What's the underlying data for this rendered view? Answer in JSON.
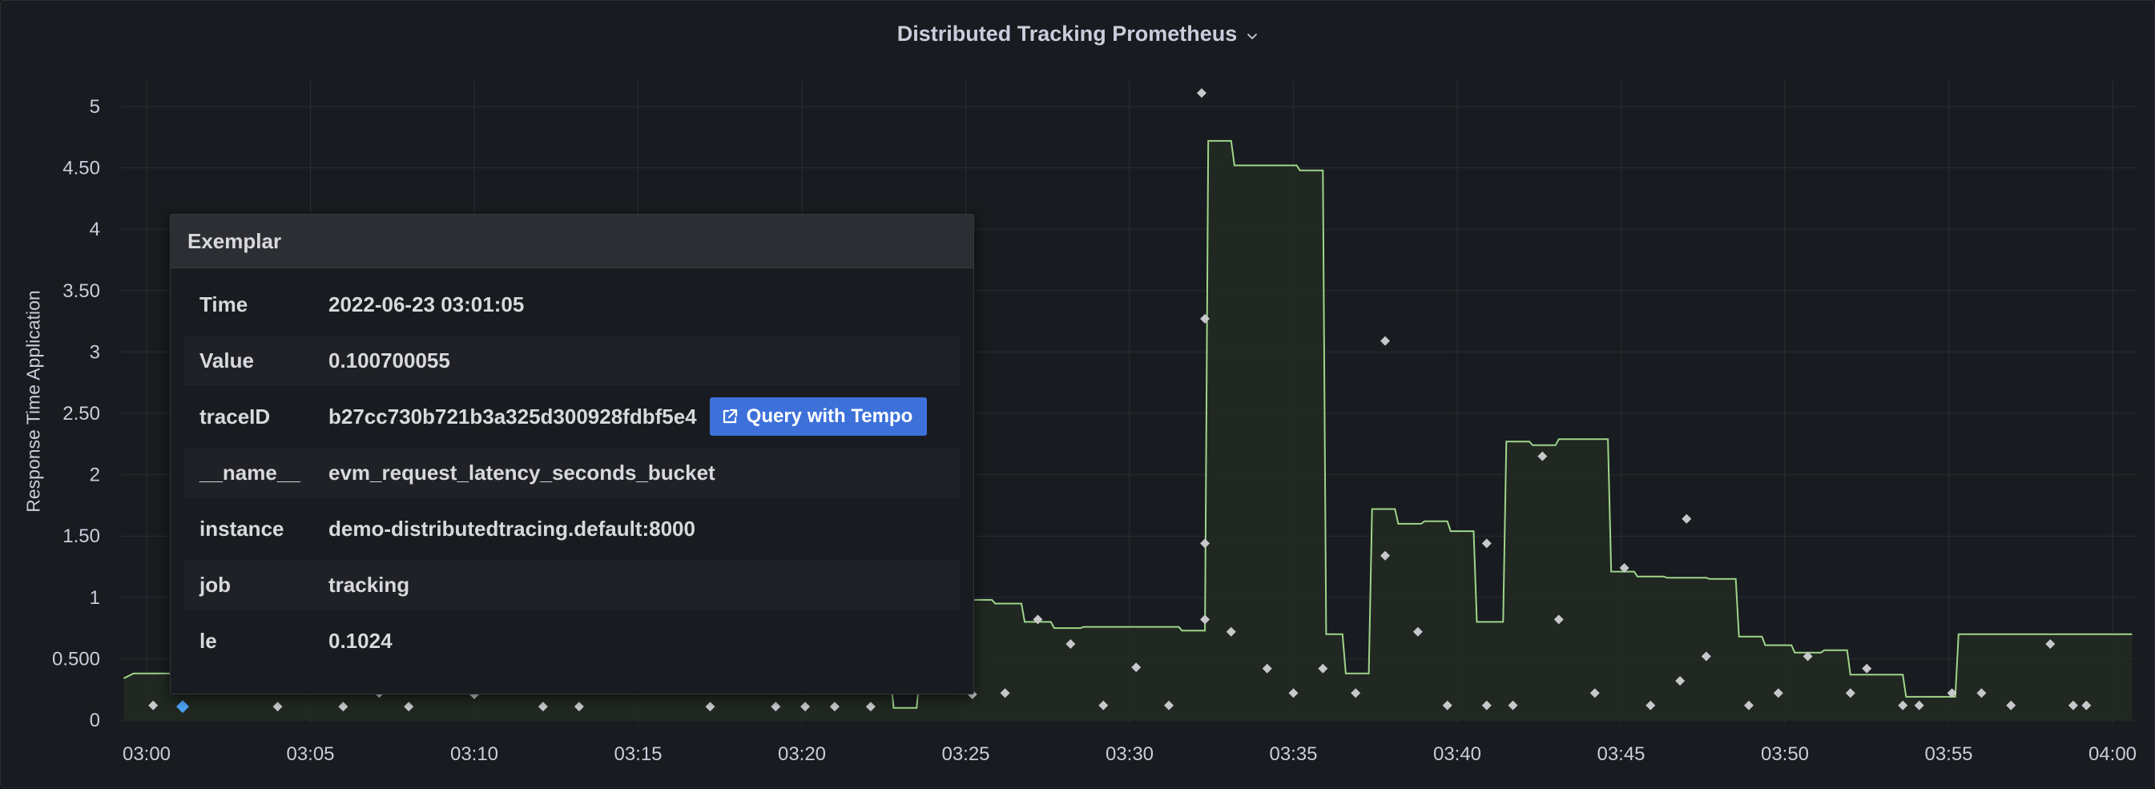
{
  "panel": {
    "title": "Distributed Tracking Prometheus"
  },
  "tooltip": {
    "header": "Exemplar",
    "rows": [
      {
        "key": "Time",
        "value": "2022-06-23 03:01:05"
      },
      {
        "key": "Value",
        "value": "0.100700055"
      },
      {
        "key": "traceID",
        "value": "b27cc730b721b3a325d300928fdbf5e4"
      },
      {
        "key": "__name__",
        "value": "evm_request_latency_seconds_bucket"
      },
      {
        "key": "instance",
        "value": "demo-distributedtracing.default:8000"
      },
      {
        "key": "job",
        "value": "tracking"
      },
      {
        "key": "le",
        "value": "0.1024"
      }
    ],
    "query_button_label": "Query with Tempo"
  },
  "colors": {
    "line": "#9ed58a",
    "fill": "#222a22",
    "exemplar": "#c8c8cc",
    "selected_exemplar": "#4da3f5",
    "accent_button": "#3d71d9"
  },
  "icons": {
    "title_menu": "chevron-down-icon",
    "button": "external-link-icon"
  },
  "chart_data": {
    "type": "area",
    "ylabel": "Response Time Application",
    "xlabel": "",
    "ylim": [
      0,
      5
    ],
    "y_ticks": [
      "0",
      "0.500",
      "1",
      "1.50",
      "2",
      "2.50",
      "3",
      "3.50",
      "4",
      "4.50",
      "5"
    ],
    "x_ticks": [
      "03:00",
      "03:05",
      "03:10",
      "03:15",
      "03:20",
      "03:25",
      "03:30",
      "03:35",
      "03:40",
      "03:45",
      "03:50",
      "03:55",
      "04:00"
    ],
    "grid": true,
    "series": [
      {
        "x": [
          -0.7,
          -0.4,
          0.5,
          9.2,
          22.7,
          22.8,
          23.5,
          23.6,
          24.1,
          24.2,
          25.0,
          25.1,
          25.8,
          25.9,
          26.7,
          26.8,
          27.6,
          27.7,
          28.5,
          28.6,
          29.4,
          29.5,
          31.5,
          31.6,
          32.3,
          32.4,
          33.1,
          33.2,
          34.2,
          35.1,
          35.2,
          35.9,
          36.0,
          36.5,
          36.6,
          37.3,
          37.4,
          38.1,
          38.2,
          38.9,
          39.0,
          39.7,
          39.8,
          40.5,
          40.6,
          41.4,
          41.5,
          42.2,
          42.3,
          43.0,
          43.1,
          43.8,
          43.9,
          44.6,
          44.7,
          45.4,
          45.5,
          46.3,
          46.4,
          47.6,
          47.7,
          48.5,
          48.6,
          49.3,
          49.4,
          50.2,
          50.3,
          51.1,
          51.2,
          51.9,
          52.0,
          52.7,
          52.8,
          53.6,
          53.7,
          54.4,
          54.5,
          55.2,
          55.3,
          56.1,
          56.2,
          57.3,
          57.4,
          58.1,
          58.2,
          59.0,
          59.1,
          60.1,
          60.2,
          60.6
        ],
        "y": [
          0.34,
          0.38,
          0.38,
          0.38,
          0.38,
          0.1,
          0.1,
          0.38,
          0.38,
          1.02,
          1.02,
          0.98,
          0.98,
          0.95,
          0.95,
          0.8,
          0.8,
          0.75,
          0.75,
          0.76,
          0.76,
          0.76,
          0.76,
          0.73,
          0.73,
          4.72,
          4.72,
          4.52,
          4.52,
          4.52,
          4.48,
          4.48,
          0.7,
          0.7,
          0.38,
          0.38,
          1.72,
          1.72,
          1.6,
          1.6,
          1.62,
          1.62,
          1.54,
          1.54,
          0.8,
          0.8,
          2.27,
          2.27,
          2.24,
          2.24,
          2.29,
          2.29,
          2.29,
          2.29,
          1.21,
          1.21,
          1.17,
          1.17,
          1.16,
          1.16,
          1.15,
          1.15,
          0.68,
          0.68,
          0.61,
          0.61,
          0.55,
          0.55,
          0.57,
          0.57,
          0.37,
          0.37,
          0.37,
          0.37,
          0.19,
          0.19,
          0.19,
          0.19,
          0.7,
          0.7,
          0.7,
          0.7,
          0.7,
          0.7,
          0.7,
          0.7,
          0.7,
          0.7,
          0.7,
          0.7
        ]
      }
    ],
    "exemplars": {
      "x": [
        0.2,
        1.1,
        4.0,
        6.0,
        7.1,
        8.0,
        10.0,
        12.1,
        13.2,
        17.2,
        19.2,
        20.1,
        21.0,
        22.1,
        25.2,
        26.2,
        27.2,
        28.2,
        29.2,
        30.2,
        31.2,
        32.2,
        32.3,
        32.3,
        32.3,
        33.1,
        34.2,
        35.0,
        35.9,
        36.9,
        37.8,
        37.8,
        38.8,
        39.7,
        40.9,
        40.9,
        41.7,
        42.6,
        43.1,
        44.2,
        45.1,
        45.9,
        46.8,
        47.0,
        47.6,
        48.9,
        49.8,
        50.7,
        52.0,
        52.5,
        53.6,
        54.1,
        55.1,
        56.0,
        56.9,
        58.1,
        58.8,
        59.2
      ],
      "y": [
        0.12,
        0.11,
        0.11,
        0.11,
        0.22,
        0.11,
        0.21,
        0.11,
        0.11,
        0.11,
        0.11,
        0.11,
        0.11,
        0.11,
        0.21,
        0.22,
        0.82,
        0.62,
        0.12,
        0.43,
        0.12,
        5.11,
        3.27,
        1.44,
        0.82,
        0.72,
        0.42,
        0.22,
        0.42,
        0.22,
        3.09,
        1.34,
        0.72,
        0.12,
        1.44,
        0.12,
        0.12,
        2.15,
        0.82,
        0.22,
        1.24,
        0.12,
        0.32,
        1.64,
        0.52,
        0.12,
        0.22,
        0.52,
        0.22,
        0.42,
        0.12,
        0.12,
        0.22,
        0.22,
        0.12,
        0.62,
        0.12,
        0.12
      ],
      "selected_index": 1
    }
  }
}
